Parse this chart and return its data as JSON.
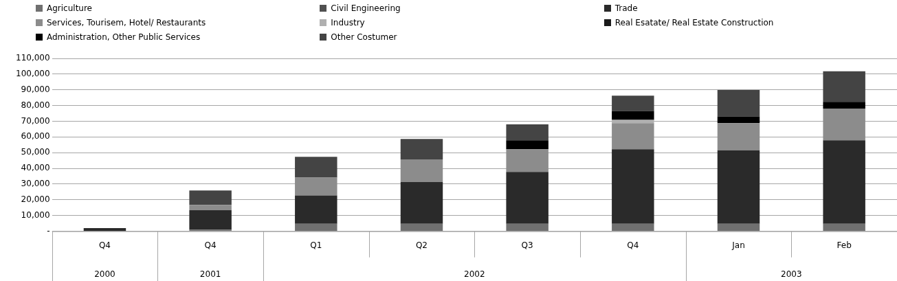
{
  "chart_data": {
    "type": "bar",
    "stacked": true,
    "categories": [
      "Q4",
      "Q4",
      "Q1",
      "Q2",
      "Q3",
      "Q4",
      "Jan",
      "Feb"
    ],
    "series": [
      {
        "name": "Agriculture",
        "color": "#707070",
        "values": [
          200,
          1000,
          4700,
          4700,
          4700,
          4700,
          4700,
          4700
        ]
      },
      {
        "name": "Civil Engineering",
        "color": "#505050",
        "values": [
          0,
          0,
          0,
          0,
          0,
          0,
          0,
          0
        ]
      },
      {
        "name": "Trade",
        "color": "#2a2a2a",
        "values": [
          1800,
          12400,
          18100,
          26600,
          33100,
          47500,
          46800,
          53200
        ]
      },
      {
        "name": "Services, Tourisem, Hotel/ Restaurants",
        "color": "#8c8c8c",
        "values": [
          0,
          3400,
          11400,
          14400,
          14400,
          16600,
          17300,
          20200
        ]
      },
      {
        "name": "Industry",
        "color": "#b0b0b0",
        "values": [
          0,
          0,
          0,
          0,
          0,
          2100,
          0,
          0
        ]
      },
      {
        "name": "Real Esatate/ Real  Estate Construction",
        "color": "#1a1a1a",
        "values": [
          0,
          0,
          0,
          0,
          0,
          0,
          0,
          0
        ]
      },
      {
        "name": "Administration, Other Public Services",
        "color": "#000000",
        "values": [
          0,
          0,
          0,
          0,
          5700,
          5700,
          4300,
          4300
        ]
      },
      {
        "name": "Other Costumer",
        "color": "#444444",
        "values": [
          0,
          9200,
          13200,
          13000,
          10100,
          9700,
          16800,
          19400
        ]
      }
    ],
    "ylim": [
      0,
      110000
    ],
    "yticks": [
      {
        "value": 0,
        "label": "-"
      },
      {
        "value": 10000,
        "label": "10,000"
      },
      {
        "value": 20000,
        "label": "20,000"
      },
      {
        "value": 30000,
        "label": "30,000"
      },
      {
        "value": 40000,
        "label": "40,000"
      },
      {
        "value": 50000,
        "label": "50,000"
      },
      {
        "value": 60000,
        "label": "60,000"
      },
      {
        "value": 70000,
        "label": "70,000"
      },
      {
        "value": 80000,
        "label": "80,000"
      },
      {
        "value": 90000,
        "label": "90,000"
      },
      {
        "value": 100000,
        "label": "100,000"
      },
      {
        "value": 110000,
        "label": "110,000"
      }
    ],
    "grid": "y",
    "legend": "top",
    "annotations": [
      "2000",
      "2001",
      "2002",
      "2003"
    ]
  }
}
